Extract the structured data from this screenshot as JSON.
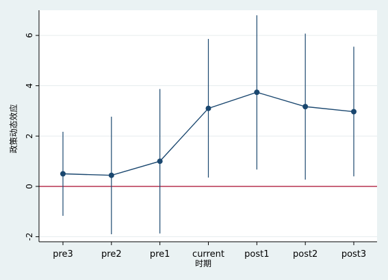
{
  "chart_data": {
    "type": "line",
    "title": "",
    "xlabel": "时期",
    "ylabel": "政策动态效应",
    "categories": [
      "pre3",
      "pre2",
      "pre1",
      "current",
      "post1",
      "post2",
      "post3"
    ],
    "series": [
      {
        "values": [
          0.5,
          0.44,
          1.0,
          3.1,
          3.74,
          3.17,
          2.97
        ],
        "ci_lower": [
          -1.17,
          -1.9,
          -1.87,
          0.35,
          0.67,
          0.27,
          0.4
        ],
        "ci_upper": [
          2.17,
          2.77,
          3.87,
          5.86,
          6.8,
          6.07,
          5.55
        ]
      }
    ],
    "yticks": [
      -2,
      0,
      2,
      4,
      6
    ],
    "ylim": [
      -2.2,
      7.0
    ],
    "reference_line": {
      "y": 0,
      "color": "#b02040"
    },
    "grid": true,
    "colors": {
      "line": "#1a476f",
      "marker": "#1a476f",
      "ci": "#1a476f",
      "background": "#eaf2f3",
      "plot_background": "#ffffff"
    }
  }
}
